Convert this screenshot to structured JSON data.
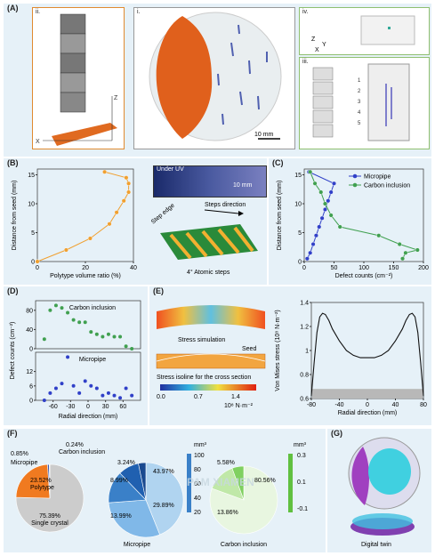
{
  "panels": {
    "A": {
      "label": "(A)",
      "sub_i": "i.",
      "sub_ii": "ii.",
      "sub_iii": "iii.",
      "sub_iv": "iv.",
      "scale": "10 mm",
      "axis_z": "Z",
      "axis_x": "X",
      "axis_y": "Y",
      "slices": [
        "1",
        "2",
        "3",
        "4",
        "5"
      ]
    },
    "B": {
      "label": "(B)",
      "uv_label": "Under UV",
      "uv_scale": "10 mm",
      "steps_direction": "Steps direction",
      "step_edge": "Step edge",
      "atomic_steps": "4° Atomic steps"
    },
    "C": {
      "label": "(C)"
    },
    "D": {
      "label": "(D)",
      "top_title": "Carbon inclusion",
      "bottom_title": "Micropipe",
      "ylabel": "Defect counts (cm⁻²)",
      "xlabel": "Radial direction (mm)"
    },
    "E": {
      "label": "(E)",
      "stress_sim": "Stress simulation",
      "seed": "Seed",
      "isoline": "Stress isoline for the cross section",
      "cbar_ticks": [
        "0.0",
        "0.7",
        "1.4"
      ],
      "cbar_unit": "10⁸ N·m⁻²"
    },
    "F": {
      "label": "(F)",
      "pie1": [
        "0.85%",
        "0.24%",
        "Carbon inclusion",
        "Micropipe",
        "23.52%",
        "Polytype",
        "75.39%",
        "Single crystal"
      ],
      "pie2": [
        "3.24%",
        "8.99%",
        "13.99%",
        "43.97%",
        "29.89%",
        "Micropipe"
      ],
      "pie2_cbar": [
        "mm³",
        "100",
        "80",
        "60",
        "40",
        "20"
      ],
      "pie3": [
        "5.58%",
        "13.86%",
        "80.56%",
        "Carbon inclusion"
      ],
      "pie3_cbar": [
        "mm³",
        "0.3",
        "0.1",
        "-0.1"
      ],
      "watermark": "PAM XIAMEN"
    },
    "G": {
      "label": "(G)",
      "caption": "Digital twin"
    }
  },
  "chart_data": [
    {
      "type": "line",
      "panel": "B",
      "xlabel": "Polytype volume ratio (%)",
      "ylabel": "Distance from seed (mm)",
      "xlim": [
        0,
        40
      ],
      "ylim": [
        0,
        16
      ],
      "xticks": [
        0,
        20,
        40
      ],
      "yticks": [
        0,
        5,
        10,
        15
      ],
      "series": [
        {
          "color": "#f0a030",
          "x": [
            0,
            12,
            22,
            30,
            33,
            36,
            38,
            38,
            37,
            28
          ],
          "y": [
            0,
            2,
            4,
            6.5,
            8.5,
            10.5,
            12,
            13.5,
            14.5,
            15.5
          ]
        }
      ]
    },
    {
      "type": "line",
      "panel": "C",
      "xlabel": "Defect counts (cm⁻²)",
      "ylabel": "Distance from seed (mm)",
      "xlim": [
        0,
        200
      ],
      "ylim": [
        0,
        16
      ],
      "xticks": [
        0,
        50,
        100,
        150,
        200
      ],
      "yticks": [
        0,
        5,
        10,
        15
      ],
      "legend": "top-right",
      "series": [
        {
          "name": "Micropipe",
          "color": "#3040c8",
          "x": [
            5,
            10,
            15,
            20,
            25,
            30,
            35,
            40,
            45,
            50,
            8
          ],
          "y": [
            0.5,
            1.5,
            3,
            4.5,
            6,
            7.5,
            9,
            10.5,
            12,
            13.5,
            15.5
          ]
        },
        {
          "name": "Carbon inclusion",
          "color": "#40a050",
          "x": [
            165,
            170,
            190,
            160,
            125,
            60,
            45,
            35,
            28,
            18,
            10
          ],
          "y": [
            0.5,
            1.5,
            2,
            3,
            4.5,
            6,
            8,
            10,
            12,
            13.5,
            15.5
          ]
        }
      ]
    },
    {
      "type": "scatter",
      "panel": "D-top",
      "title": "Carbon inclusion",
      "xlim": [
        -90,
        90
      ],
      "ylim": [
        0,
        100
      ],
      "yticks": [
        0,
        40,
        80
      ],
      "series": [
        {
          "color": "#40a050",
          "x": [
            -75,
            -65,
            -55,
            -45,
            -35,
            -25,
            -15,
            -5,
            5,
            15,
            25,
            35,
            45,
            55,
            65,
            75
          ],
          "y": [
            20,
            80,
            90,
            85,
            75,
            60,
            55,
            55,
            35,
            30,
            25,
            30,
            25,
            25,
            5,
            0
          ]
        }
      ]
    },
    {
      "type": "scatter",
      "panel": "D-bottom",
      "title": "Micropipe",
      "xlim": [
        -90,
        90
      ],
      "ylim": [
        0,
        20
      ],
      "xticks": [
        -60,
        -30,
        0,
        30,
        60
      ],
      "yticks": [
        0,
        6,
        12
      ],
      "series": [
        {
          "color": "#3040c8",
          "x": [
            -75,
            -65,
            -55,
            -45,
            -35,
            -25,
            -15,
            -5,
            5,
            15,
            25,
            35,
            45,
            55,
            65,
            75
          ],
          "y": [
            0,
            3,
            5,
            7,
            18,
            6,
            3,
            8,
            6,
            5,
            2,
            3,
            2,
            1,
            5,
            2
          ]
        }
      ]
    },
    {
      "type": "line",
      "panel": "E",
      "ylabel": "Von Mises stress (10⁸ N·m⁻²)",
      "xlabel": "Radial direction (mm)",
      "xlim": [
        -80,
        80
      ],
      "ylim": [
        0.6,
        1.4
      ],
      "xticks": [
        -80,
        -40,
        0,
        40,
        80
      ],
      "yticks": [
        0.6,
        0.8,
        1.0,
        1.2,
        1.4
      ],
      "series": [
        {
          "color": "#111111",
          "x": [
            -80,
            -76,
            -72,
            -68,
            -64,
            -60,
            -55,
            -50,
            -40,
            -30,
            -20,
            -10,
            0,
            10,
            20,
            30,
            40,
            50,
            55,
            60,
            64,
            68,
            72,
            76,
            80
          ],
          "y": [
            0.62,
            0.9,
            1.15,
            1.28,
            1.31,
            1.3,
            1.25,
            1.18,
            1.08,
            1.0,
            0.96,
            0.94,
            0.94,
            0.94,
            0.96,
            1.0,
            1.08,
            1.18,
            1.25,
            1.3,
            1.31,
            1.28,
            1.15,
            0.9,
            0.62
          ]
        }
      ]
    },
    {
      "type": "pie",
      "panel": "F-1",
      "labels": [
        "Single crystal",
        "Polytype",
        "Micropipe",
        "Carbon inclusion"
      ],
      "values": [
        75.39,
        23.52,
        0.85,
        0.24
      ]
    },
    {
      "type": "pie",
      "panel": "F-2",
      "labels": [
        "43.97%",
        "29.89%",
        "13.99%",
        "8.99%",
        "3.24%"
      ],
      "values": [
        43.97,
        29.89,
        13.99,
        8.99,
        3.24
      ]
    },
    {
      "type": "pie",
      "panel": "F-3",
      "labels": [
        "80.56%",
        "13.86%",
        "5.58%"
      ],
      "values": [
        80.56,
        13.86,
        5.58
      ]
    }
  ]
}
